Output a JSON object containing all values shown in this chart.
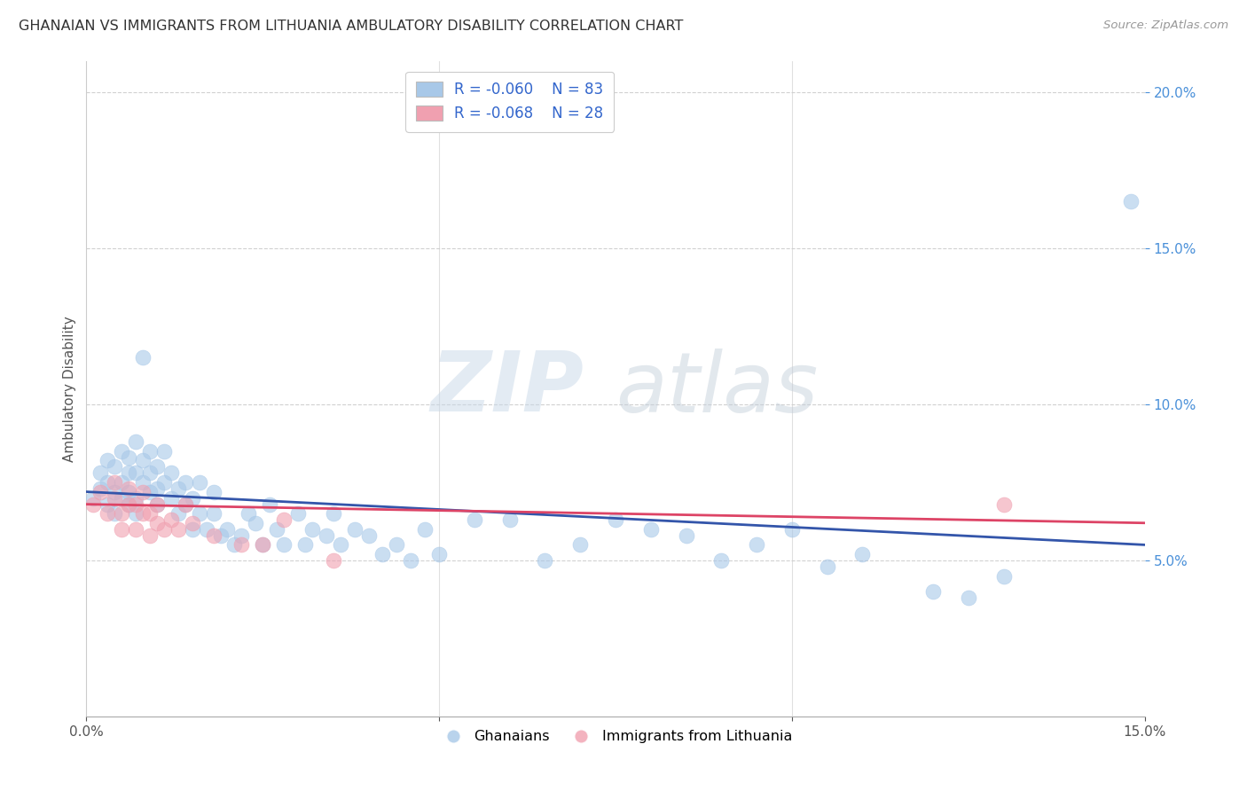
{
  "title": "GHANAIAN VS IMMIGRANTS FROM LITHUANIA AMBULATORY DISABILITY CORRELATION CHART",
  "source": "Source: ZipAtlas.com",
  "ylabel": "Ambulatory Disability",
  "xlim": [
    0.0,
    0.15
  ],
  "ylim": [
    0.0,
    0.21
  ],
  "yticks": [
    0.05,
    0.1,
    0.15,
    0.2
  ],
  "ytick_labels": [
    "5.0%",
    "10.0%",
    "15.0%",
    "20.0%"
  ],
  "legend_r1": "-0.060",
  "legend_n1": "83",
  "legend_r2": "-0.068",
  "legend_n2": "28",
  "color_blue": "#a8c8e8",
  "color_pink": "#f0a0b0",
  "line_blue": "#3355aa",
  "line_pink": "#dd4466",
  "watermark_zip": "ZIP",
  "watermark_atlas": "atlas",
  "background": "#ffffff",
  "ghanaians_x": [
    0.001,
    0.002,
    0.002,
    0.003,
    0.003,
    0.003,
    0.004,
    0.004,
    0.004,
    0.005,
    0.005,
    0.005,
    0.006,
    0.006,
    0.006,
    0.006,
    0.007,
    0.007,
    0.007,
    0.007,
    0.008,
    0.008,
    0.008,
    0.009,
    0.009,
    0.009,
    0.01,
    0.01,
    0.01,
    0.011,
    0.011,
    0.012,
    0.012,
    0.013,
    0.013,
    0.014,
    0.014,
    0.015,
    0.015,
    0.016,
    0.016,
    0.017,
    0.018,
    0.018,
    0.019,
    0.02,
    0.021,
    0.022,
    0.023,
    0.024,
    0.025,
    0.026,
    0.027,
    0.028,
    0.03,
    0.031,
    0.032,
    0.034,
    0.035,
    0.036,
    0.038,
    0.04,
    0.042,
    0.044,
    0.046,
    0.048,
    0.05,
    0.055,
    0.06,
    0.065,
    0.07,
    0.075,
    0.08,
    0.085,
    0.09,
    0.095,
    0.1,
    0.105,
    0.11,
    0.12,
    0.125,
    0.13,
    0.148
  ],
  "ghanaians_y": [
    0.07,
    0.073,
    0.078,
    0.068,
    0.075,
    0.082,
    0.065,
    0.072,
    0.08,
    0.07,
    0.075,
    0.085,
    0.068,
    0.072,
    0.078,
    0.083,
    0.065,
    0.07,
    0.078,
    0.088,
    0.075,
    0.082,
    0.115,
    0.072,
    0.078,
    0.085,
    0.068,
    0.073,
    0.08,
    0.075,
    0.085,
    0.07,
    0.078,
    0.065,
    0.073,
    0.068,
    0.075,
    0.06,
    0.07,
    0.065,
    0.075,
    0.06,
    0.065,
    0.072,
    0.058,
    0.06,
    0.055,
    0.058,
    0.065,
    0.062,
    0.055,
    0.068,
    0.06,
    0.055,
    0.065,
    0.055,
    0.06,
    0.058,
    0.065,
    0.055,
    0.06,
    0.058,
    0.052,
    0.055,
    0.05,
    0.06,
    0.052,
    0.063,
    0.063,
    0.05,
    0.055,
    0.063,
    0.06,
    0.058,
    0.05,
    0.055,
    0.06,
    0.048,
    0.052,
    0.04,
    0.038,
    0.045,
    0.165
  ],
  "lithuania_x": [
    0.001,
    0.002,
    0.003,
    0.004,
    0.004,
    0.005,
    0.005,
    0.006,
    0.006,
    0.007,
    0.007,
    0.008,
    0.008,
    0.009,
    0.009,
    0.01,
    0.01,
    0.011,
    0.012,
    0.013,
    0.014,
    0.015,
    0.018,
    0.022,
    0.025,
    0.028,
    0.035,
    0.13
  ],
  "lithuania_y": [
    0.068,
    0.072,
    0.065,
    0.07,
    0.075,
    0.065,
    0.06,
    0.068,
    0.073,
    0.06,
    0.068,
    0.065,
    0.072,
    0.058,
    0.065,
    0.062,
    0.068,
    0.06,
    0.063,
    0.06,
    0.068,
    0.062,
    0.058,
    0.055,
    0.055,
    0.063,
    0.05,
    0.068
  ]
}
